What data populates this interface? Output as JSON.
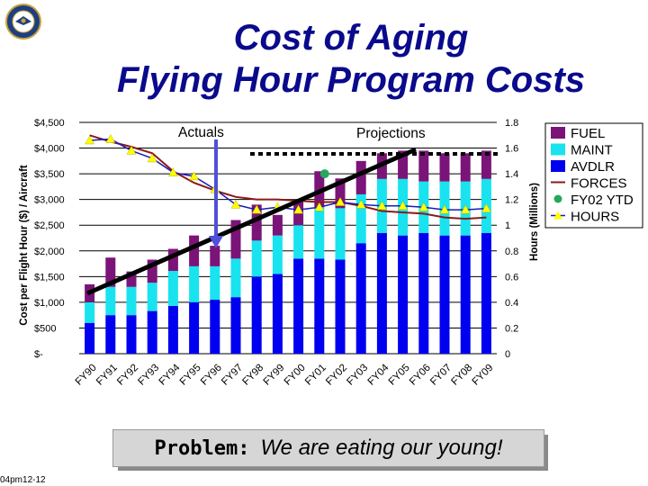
{
  "title": {
    "line1": "Cost of Aging",
    "line2": "Flying Hour Program Costs"
  },
  "problem": {
    "label": "Problem:",
    "text": "We are eating our young!"
  },
  "footer": "04pm12-12",
  "colors": {
    "fuel": "#7b1478",
    "maint": "#19e3ef",
    "avdlr": "#0000f0",
    "forces": "#8b1a1a",
    "ytd": "#26a85c",
    "hours": "#ffff00",
    "title": "#0a0a8c"
  },
  "chart_data": {
    "type": "bar",
    "categories": [
      "FY90",
      "FY91",
      "FY92",
      "FY93",
      "FY94",
      "FY95",
      "FY96",
      "FY97",
      "FY98",
      "FY99",
      "FY00",
      "FY01",
      "FY02",
      "FY03",
      "FY04",
      "FY05",
      "FY06",
      "FY07",
      "FY08",
      "FY09"
    ],
    "ylabel": "Cost per Flight Hour ($) / Aircraft",
    "y2label": "Hours (Millions)",
    "ylim": [
      0,
      4500
    ],
    "y2lim": [
      0,
      1.8
    ],
    "yticks": [
      "$-",
      "$500",
      "$1,000",
      "$1,500",
      "$2,000",
      "$2,500",
      "$3,000",
      "$3,500",
      "$4,000",
      "$4,500"
    ],
    "y2ticks": [
      "0",
      "0.2",
      "0.4",
      "0.6",
      "0.8",
      "1",
      "1.2",
      "1.4",
      "1.6",
      "1.8"
    ],
    "legend_position": "right",
    "series": [
      {
        "name": "AVDLR",
        "type": "stacked-bar",
        "color": "#0000f0",
        "values": [
          600,
          750,
          750,
          830,
          930,
          1000,
          1050,
          1100,
          1500,
          1550,
          1850,
          1850,
          1830,
          2150,
          2350,
          2300,
          2350,
          2300,
          2300,
          2350
        ]
      },
      {
        "name": "MAINT",
        "type": "stacked-bar",
        "color": "#19e3ef",
        "values": [
          400,
          550,
          550,
          550,
          680,
          700,
          650,
          750,
          700,
          750,
          650,
          1000,
          1000,
          950,
          1050,
          1100,
          1000,
          1050,
          1050,
          1050
        ]
      },
      {
        "name": "FUEL",
        "type": "stacked-bar",
        "color": "#7b1478",
        "values": [
          350,
          570,
          300,
          450,
          430,
          600,
          400,
          750,
          700,
          400,
          500,
          700,
          580,
          650,
          500,
          550,
          600,
          550,
          550,
          550
        ]
      },
      {
        "name": "FORCES",
        "type": "line",
        "axis": "y2",
        "color": "#8b1a1a",
        "values": [
          1.7,
          1.65,
          1.61,
          1.56,
          1.42,
          1.33,
          1.27,
          1.22,
          1.2,
          1.2,
          1.19,
          1.18,
          1.18,
          1.15,
          1.11,
          1.1,
          1.09,
          1.06,
          1.05,
          1.06
        ]
      },
      {
        "name": "HOURS",
        "type": "line",
        "axis": "y2",
        "color": "#ffff00",
        "values": [
          1.66,
          1.67,
          1.58,
          1.52,
          1.41,
          1.38,
          1.28,
          1.16,
          1.12,
          1.14,
          1.12,
          1.14,
          1.18,
          1.16,
          1.15,
          1.15,
          1.14,
          1.12,
          1.12,
          1.13
        ]
      },
      {
        "name": "FY02 YTD",
        "type": "marker",
        "axis": "y2",
        "color": "#26a85c",
        "category": "FY01",
        "value": 1.4
      }
    ],
    "annotations": {
      "actuals": "Actuals",
      "projections": "Projections"
    }
  }
}
